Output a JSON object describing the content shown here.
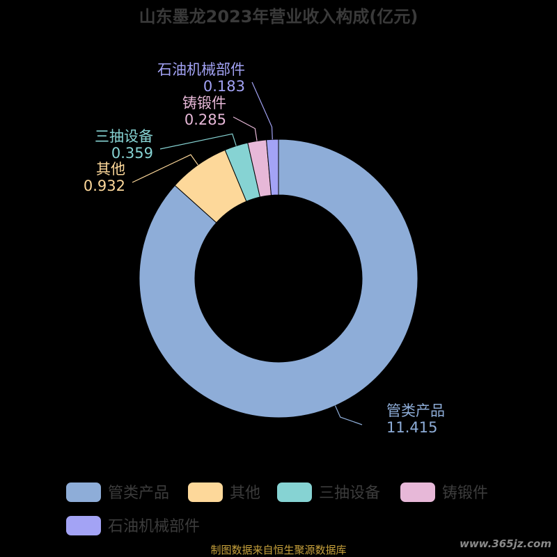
{
  "chart_data": {
    "type": "pie",
    "title": "山东墨龙2023年营业收入构成(亿元)",
    "slices": [
      {
        "name": "管类产品",
        "value": 11.415,
        "display": "11.415",
        "color": "#8eadd8"
      },
      {
        "name": "其他",
        "value": 0.932,
        "display": "0.932",
        "color": "#fdd89a"
      },
      {
        "name": "三抽设备",
        "value": 0.359,
        "display": "0.359",
        "color": "#86d3d3"
      },
      {
        "name": "铸锻件",
        "value": 0.285,
        "display": "0.285",
        "color": "#e7b8d8"
      },
      {
        "name": "石油机械部件",
        "value": 0.183,
        "display": "0.183",
        "color": "#a3a3f5"
      }
    ],
    "donut": true,
    "legend_position": "bottom"
  },
  "footer": {
    "source": "制图数据来自恒生聚源数据库",
    "watermark": "www.365jz.com"
  }
}
